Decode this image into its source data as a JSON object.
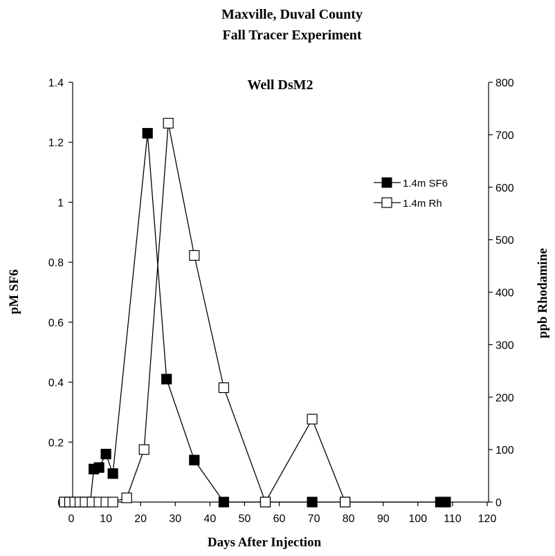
{
  "chart_data": {
    "type": "line",
    "title": "Maxville, Duval County",
    "subtitle": "Fall Tracer Experiment",
    "panel_title": "Well DsM2",
    "xlabel": "Days After Injection",
    "ylabel_left": "pM SF6",
    "ylabel_right": "ppb Rhodamine",
    "xlim": [
      -2,
      120
    ],
    "xticks": [
      "0",
      "10",
      "20",
      "30",
      "40",
      "50",
      "60",
      "70",
      "80",
      "90",
      "100",
      "110",
      "120"
    ],
    "ylim_left": [
      0,
      1.4
    ],
    "yticks_left": [
      "0",
      "0.2",
      "0.4",
      "0.6",
      "0.8",
      "1",
      "1.2",
      "1.4"
    ],
    "ylim_right": [
      0,
      800
    ],
    "yticks_right": [
      "0",
      "100",
      "200",
      "300",
      "400",
      "500",
      "600",
      "700",
      "800"
    ],
    "grid": false,
    "legend_position": "right",
    "series": [
      {
        "name": "1.4m SF6",
        "axis": "left",
        "marker": "filled-square",
        "color": "#000000",
        "x": [
          -2,
          -0.5,
          1,
          2.5,
          4,
          5.5,
          6.5,
          8,
          10,
          12,
          22,
          27.5,
          35.5,
          44,
          56,
          69.5,
          79,
          106.5,
          108
        ],
        "y": [
          0,
          0,
          0,
          0,
          0,
          0,
          0.11,
          0.115,
          0.16,
          0.095,
          1.23,
          0.41,
          0.14,
          0,
          0,
          0,
          0,
          0,
          0
        ]
      },
      {
        "name": "1.4m Rh",
        "axis": "right",
        "marker": "open-square",
        "color": "#000000",
        "x": [
          -2,
          -0.5,
          1,
          2.5,
          4,
          6,
          8,
          10,
          12,
          16,
          21,
          28,
          35.5,
          44,
          56,
          69.5,
          79
        ],
        "y": [
          0,
          0,
          0,
          0,
          0,
          0,
          0,
          0,
          0,
          8,
          100,
          722,
          470,
          218,
          0,
          158,
          0
        ]
      }
    ]
  }
}
